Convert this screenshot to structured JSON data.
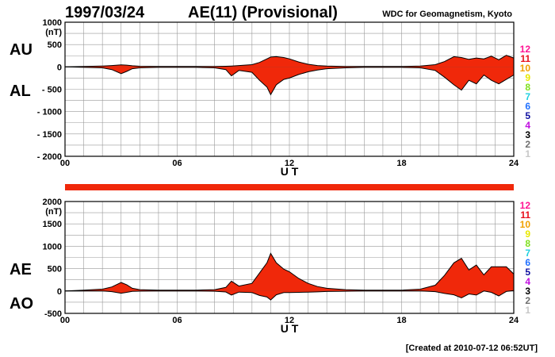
{
  "header": {
    "date": "1997/03/24",
    "title": "AE(11) (Provisional)",
    "organization": "WDC for Geomagnetism, Kyoto"
  },
  "footer": {
    "created": "[Created at 2010-07-12 06:52UT]"
  },
  "status_bar": {
    "color": "#f0280a"
  },
  "legend": {
    "items": [
      {
        "label": "12",
        "color": "#ff1493"
      },
      {
        "label": "11",
        "color": "#e8101c"
      },
      {
        "label": "10",
        "color": "#f0a000"
      },
      {
        "label": "9",
        "color": "#e8e800"
      },
      {
        "label": "8",
        "color": "#80e020"
      },
      {
        "label": "7",
        "color": "#20d0e0"
      },
      {
        "label": "6",
        "color": "#2070ff"
      },
      {
        "label": "5",
        "color": "#1010a0"
      },
      {
        "label": "4",
        "color": "#c010e0"
      },
      {
        "label": "3",
        "color": "#000000"
      },
      {
        "label": "2",
        "color": "#707070"
      },
      {
        "label": "1",
        "color": "#c8c8c8"
      }
    ]
  },
  "colors": {
    "fill": "#f0280a",
    "line": "#000000",
    "grid": "#999999"
  },
  "chart_data": [
    {
      "type": "area",
      "left_labels": [
        "AU",
        "AL"
      ],
      "unit": "(nT)",
      "ylim": [
        -2000,
        1000
      ],
      "y_ticks": [
        1000,
        500,
        0,
        -500,
        -1000,
        -1500,
        -2000
      ],
      "y_tick_labels": [
        "1000",
        "500",
        "0",
        "- 500",
        "- 1000",
        "- 1500",
        "- 2000"
      ],
      "xlim": [
        0,
        24
      ],
      "x_ticks": [
        0,
        6,
        12,
        18,
        24
      ],
      "x_tick_labels": [
        "00",
        "06",
        "12",
        "18",
        "24"
      ],
      "xlabel": "U T",
      "grid": true,
      "x": [
        0,
        1,
        2,
        2.5,
        3,
        3.3,
        3.6,
        4,
        5,
        6,
        7,
        8,
        8.6,
        8.9,
        9.3,
        10,
        10.4,
        10.8,
        11,
        11.3,
        11.7,
        12,
        12.5,
        13,
        13.5,
        14,
        15,
        16,
        17,
        18,
        19,
        19.8,
        20.3,
        20.8,
        21.2,
        21.6,
        22,
        22.4,
        22.8,
        23.2,
        23.6,
        24
      ],
      "series": [
        {
          "values": [
            0,
            10,
            20,
            30,
            45,
            40,
            25,
            15,
            10,
            10,
            10,
            10,
            15,
            20,
            30,
            50,
            100,
            180,
            220,
            230,
            210,
            180,
            110,
            60,
            30,
            20,
            10,
            10,
            10,
            10,
            20,
            50,
            120,
            230,
            210,
            170,
            200,
            180,
            240,
            160,
            260,
            200
          ]
        },
        {
          "values": [
            0,
            -10,
            -20,
            -60,
            -150,
            -100,
            -40,
            -20,
            -10,
            -10,
            -10,
            -20,
            -60,
            -200,
            -80,
            -120,
            -300,
            -450,
            -620,
            -400,
            -280,
            -250,
            -170,
            -110,
            -70,
            -40,
            -20,
            -10,
            -10,
            -10,
            -20,
            -80,
            -230,
            -400,
            -520,
            -300,
            -380,
            -180,
            -300,
            -380,
            -280,
            -180
          ]
        }
      ]
    },
    {
      "type": "area",
      "left_labels": [
        "AE",
        "AO"
      ],
      "unit": "(nT)",
      "ylim": [
        -500,
        2000
      ],
      "y_ticks": [
        2000,
        1500,
        1000,
        500,
        0,
        -500
      ],
      "y_tick_labels": [
        "2000",
        "1500",
        "1000",
        "500",
        "0",
        "-500"
      ],
      "xlim": [
        0,
        24
      ],
      "x_ticks": [
        0,
        6,
        12,
        18,
        24
      ],
      "x_tick_labels": [
        "00",
        "06",
        "12",
        "18",
        "24"
      ],
      "xlabel": "U T",
      "grid": true,
      "x": [
        0,
        1,
        2,
        2.5,
        3,
        3.3,
        3.6,
        4,
        5,
        6,
        7,
        8,
        8.6,
        8.9,
        9.3,
        10,
        10.4,
        10.8,
        11,
        11.3,
        11.7,
        12,
        12.5,
        13,
        13.5,
        14,
        15,
        16,
        17,
        18,
        19,
        19.8,
        20.3,
        20.8,
        21.2,
        21.6,
        22,
        22.4,
        22.8,
        23.2,
        23.6,
        24
      ],
      "series": [
        {
          "values": [
            0,
            20,
            40,
            90,
            190,
            140,
            60,
            30,
            20,
            20,
            20,
            30,
            80,
            220,
            110,
            170,
            400,
            630,
            840,
            630,
            490,
            430,
            280,
            170,
            100,
            60,
            30,
            20,
            20,
            20,
            40,
            130,
            350,
            630,
            730,
            470,
            580,
            360,
            540,
            540,
            540,
            380
          ]
        },
        {
          "values": [
            0,
            0,
            0,
            -15,
            -50,
            -30,
            -8,
            -3,
            0,
            0,
            0,
            -5,
            -22,
            -90,
            -25,
            -35,
            -100,
            -135,
            -200,
            -85,
            -35,
            -35,
            -30,
            -25,
            -20,
            -10,
            -5,
            0,
            0,
            0,
            0,
            -15,
            -55,
            -85,
            -155,
            -65,
            -90,
            0,
            -30,
            -110,
            -10,
            10
          ]
        }
      ]
    }
  ]
}
